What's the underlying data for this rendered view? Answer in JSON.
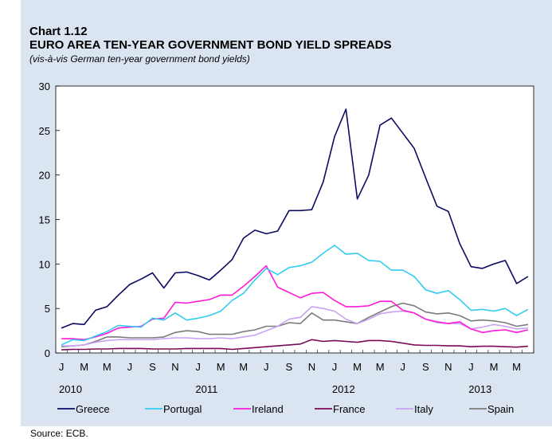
{
  "header": {
    "chart_number": "Chart 1.12",
    "title": "EURO AREA TEN-YEAR GOVERNMENT BOND YIELD SPREADS",
    "subtitle": "(vis-à-vis German ten-year government bond yields)"
  },
  "source": "Source: ECB.",
  "colors": {
    "background": "#dbe5f1",
    "Greece": "#0b0b63",
    "Portugal": "#33ccf0",
    "Ireland": "#ff1ad9",
    "France": "#7a0a55",
    "Italy": "#c9a2f5",
    "Spain": "#7b7b7b"
  },
  "chart_data": {
    "type": "line",
    "title": "EURO AREA TEN-YEAR GOVERNMENT BOND YIELD SPREADS",
    "subtitle": "(vis-à-vis German ten-year government bond yields)",
    "xlabel": "",
    "ylabel": "",
    "ylim": [
      0,
      30
    ],
    "yticks": [
      0,
      5,
      10,
      15,
      20,
      25,
      30
    ],
    "grid": false,
    "legend_position": "bottom",
    "x_month_labels": [
      "J",
      "M",
      "M",
      "J",
      "S",
      "N",
      "J",
      "M",
      "M",
      "J",
      "S",
      "N",
      "J",
      "M",
      "M",
      "J",
      "S",
      "N",
      "J",
      "M",
      "M"
    ],
    "x_year_labels": [
      "2010",
      "2011",
      "2012",
      "2013"
    ],
    "x_start": "2010-01",
    "x_end": "2013-06",
    "series": [
      {
        "name": "Greece",
        "values": [
          2.8,
          3.3,
          3.2,
          4.8,
          5.2,
          6.5,
          7.7,
          8.3,
          9.0,
          7.3,
          9.0,
          9.1,
          8.7,
          8.2,
          9.3,
          10.5,
          12.9,
          13.8,
          13.4,
          13.7,
          16.0,
          16.0,
          16.1,
          19.2,
          24.3,
          27.4,
          17.3,
          20.0,
          25.6,
          26.4,
          24.7,
          23.0,
          19.7,
          16.5,
          15.9,
          12.3,
          9.7,
          9.5,
          10.0,
          10.4,
          7.8,
          8.6
        ]
      },
      {
        "name": "Portugal",
        "values": [
          0.9,
          1.5,
          1.4,
          1.9,
          2.4,
          3.1,
          3.0,
          2.9,
          3.9,
          3.7,
          4.5,
          3.7,
          3.9,
          4.2,
          4.7,
          5.9,
          6.7,
          8.2,
          9.5,
          8.8,
          9.6,
          9.8,
          10.2,
          11.2,
          12.1,
          11.1,
          11.2,
          10.4,
          10.3,
          9.3,
          9.3,
          8.6,
          7.1,
          6.7,
          7.0,
          6.0,
          4.8,
          4.9,
          4.7,
          5.0,
          4.2,
          4.9
        ]
      },
      {
        "name": "Ireland",
        "values": [
          1.6,
          1.6,
          1.5,
          1.8,
          2.2,
          2.8,
          2.9,
          3.0,
          3.8,
          3.9,
          5.7,
          5.6,
          5.8,
          6.0,
          6.5,
          6.5,
          7.5,
          8.6,
          9.8,
          7.4,
          6.8,
          6.2,
          6.7,
          6.8,
          5.9,
          5.2,
          5.2,
          5.3,
          5.8,
          5.8,
          4.8,
          4.5,
          3.8,
          3.5,
          3.3,
          3.5,
          2.7,
          2.3,
          2.5,
          2.6,
          2.3,
          2.6
        ]
      },
      {
        "name": "France",
        "values": [
          0.35,
          0.4,
          0.4,
          0.45,
          0.45,
          0.5,
          0.5,
          0.5,
          0.45,
          0.45,
          0.45,
          0.5,
          0.5,
          0.5,
          0.5,
          0.4,
          0.5,
          0.6,
          0.7,
          0.8,
          0.9,
          1.0,
          1.5,
          1.3,
          1.4,
          1.3,
          1.2,
          1.4,
          1.4,
          1.3,
          1.1,
          0.9,
          0.85,
          0.85,
          0.8,
          0.8,
          0.7,
          0.75,
          0.75,
          0.7,
          0.65,
          0.75
        ]
      },
      {
        "name": "Italy",
        "values": [
          0.8,
          0.8,
          0.9,
          1.2,
          1.4,
          1.5,
          1.5,
          1.5,
          1.5,
          1.6,
          1.7,
          1.7,
          1.6,
          1.6,
          1.7,
          1.6,
          1.8,
          2.0,
          2.5,
          3.0,
          3.8,
          4.0,
          5.2,
          5.0,
          4.7,
          3.8,
          3.3,
          3.8,
          4.4,
          4.6,
          4.7,
          4.5,
          3.8,
          3.4,
          3.3,
          3.3,
          2.7,
          2.9,
          3.2,
          3.0,
          2.7,
          2.8
        ]
      },
      {
        "name": "Spain",
        "values": [
          0.7,
          0.8,
          0.9,
          1.3,
          1.8,
          1.8,
          1.7,
          1.7,
          1.7,
          1.8,
          2.3,
          2.5,
          2.4,
          2.1,
          2.1,
          2.1,
          2.4,
          2.6,
          3.0,
          3.0,
          3.4,
          3.3,
          4.5,
          3.7,
          3.7,
          3.5,
          3.3,
          4.0,
          4.6,
          5.2,
          5.6,
          5.3,
          4.6,
          4.4,
          4.5,
          4.2,
          3.6,
          3.7,
          3.6,
          3.4,
          3.0,
          3.2
        ]
      }
    ]
  }
}
